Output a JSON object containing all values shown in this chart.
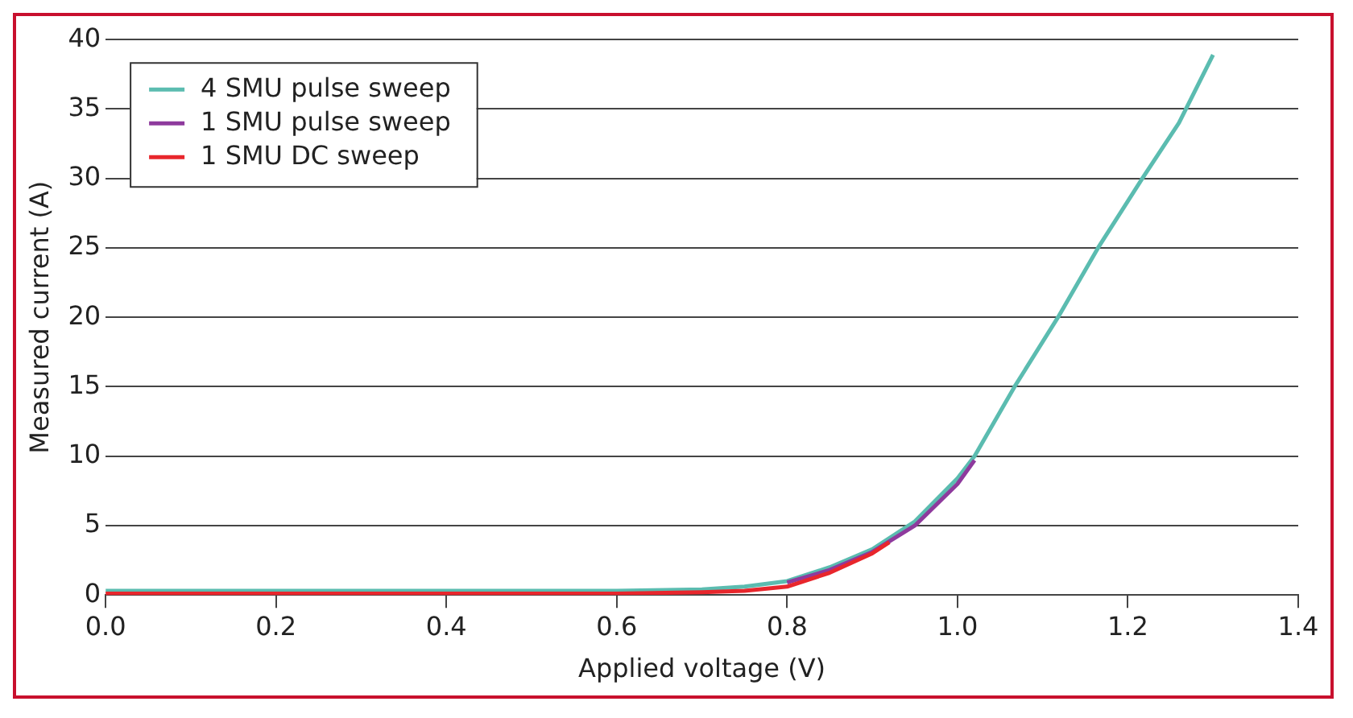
{
  "chart_data": {
    "type": "line",
    "xlabel": "Applied voltage (V)",
    "ylabel": "Measured current (A)",
    "xlim": [
      0,
      1.4
    ],
    "xticks": [
      {
        "value": 0,
        "label": "0.0"
      },
      {
        "value": 0.2,
        "label": "0.2"
      },
      {
        "value": 0.4,
        "label": "0.4"
      },
      {
        "value": 0.6,
        "label": "0.6"
      },
      {
        "value": 0.8,
        "label": "0.8"
      },
      {
        "value": 1.0,
        "label": "1.0"
      },
      {
        "value": 1.2,
        "label": "1.2"
      },
      {
        "value": 1.4,
        "label": "1.4"
      }
    ],
    "ylim": [
      0,
      40
    ],
    "yticks": [
      0,
      5,
      10,
      15,
      20,
      25,
      30,
      35,
      40
    ],
    "grid": "y",
    "legend": "top left",
    "marker": "none",
    "line_style": "solid",
    "series": [
      {
        "name": "4 SMU pulse sweep",
        "color": "#5bbcb0",
        "x": [
          0,
          0.2,
          0.4,
          0.6,
          0.7,
          0.75,
          0.8,
          0.85,
          0.9,
          0.95,
          1.0,
          1.02,
          1.067,
          1.118,
          1.165,
          1.217,
          1.26,
          1.3
        ],
        "values": [
          0.3,
          0.3,
          0.3,
          0.3,
          0.4,
          0.6,
          1.0,
          2.0,
          3.3,
          5.3,
          8.4,
          10,
          15,
          20,
          25,
          30,
          34,
          38.9
        ]
      },
      {
        "name": "1 SMU pulse sweep",
        "color": "#8e3a9d",
        "x": [
          0.8,
          0.85,
          0.9,
          0.95,
          1.0,
          1.02
        ],
        "values": [
          0.9,
          1.8,
          3.1,
          5.0,
          8.0,
          9.7
        ]
      },
      {
        "name": "1 SMU DC sweep",
        "color": "#e8262c",
        "x": [
          0,
          0.2,
          0.4,
          0.6,
          0.7,
          0.75,
          0.8,
          0.85,
          0.9,
          0.92
        ],
        "values": [
          0.1,
          0.1,
          0.1,
          0.1,
          0.2,
          0.3,
          0.6,
          1.6,
          3.0,
          3.8
        ]
      }
    ]
  }
}
